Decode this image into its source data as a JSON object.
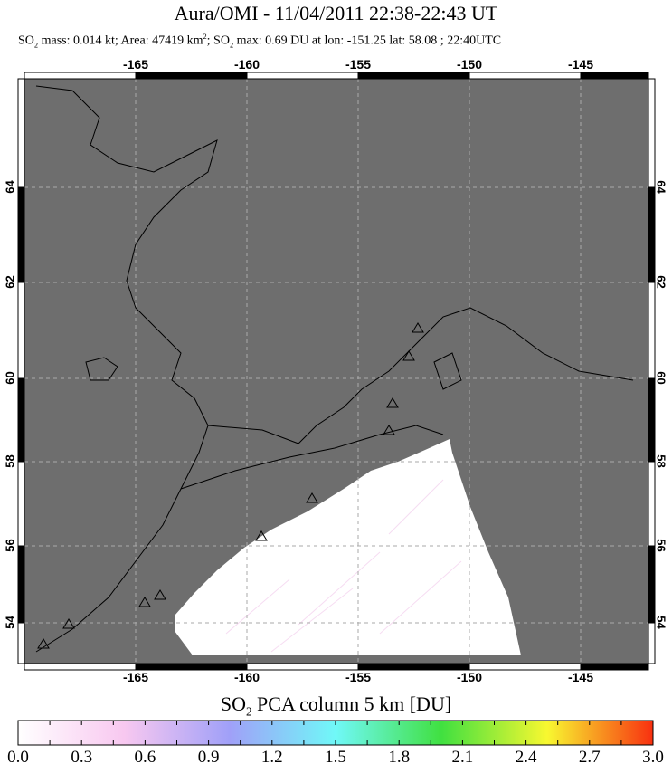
{
  "title": "Aura/OMI - 11/04/2011 22:38-22:43 UT",
  "subtitle": {
    "so2_mass": "SO",
    "mass_text": " mass: 0.014 kt; Area: 47419 km",
    "area_sup": "2",
    "rest1": "; SO",
    "max_text": " max: 0.69 DU at lon: -151.25 lat: 58.08 ; 22:40UTC",
    "sub2": "2"
  },
  "map": {
    "lon_ticks": [
      "-165",
      "-160",
      "-155",
      "-150",
      "-145"
    ],
    "lat_ticks": [
      "64",
      "62",
      "60",
      "58",
      "56",
      "54"
    ],
    "land_color": "#6e6e6e",
    "no_data_color": "#ffffff"
  },
  "colorbar": {
    "title_pre": "SO",
    "title_sub": "2",
    "title_post": " PCA column 5 km [DU]",
    "ticks": [
      "0.0",
      "0.3",
      "0.6",
      "0.9",
      "1.2",
      "1.5",
      "1.8",
      "2.1",
      "2.4",
      "2.7",
      "3.0"
    ],
    "colors": [
      "#ffffff",
      "#f8c8f0",
      "#a0a0f8",
      "#70f8f8",
      "#40e040",
      "#f8f830",
      "#f83010"
    ]
  }
}
